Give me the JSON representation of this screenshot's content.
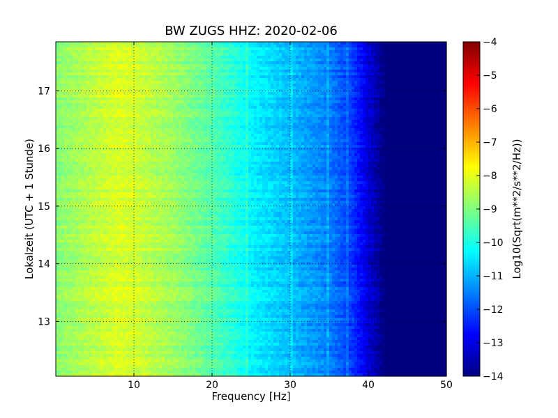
{
  "chart_data": {
    "type": "heatmap",
    "title": "BW ZUGS HHZ: 2020-02-06",
    "xlabel": "Frequency [Hz]",
    "ylabel": "Lokalzeit (UTC + 1 Stunde)",
    "xlim": [
      0,
      50
    ],
    "ylim": [
      17.85,
      12.05
    ],
    "y_inverted": true,
    "xticks": [
      10,
      20,
      30,
      40,
      50
    ],
    "yticks": [
      13,
      14,
      15,
      16,
      17
    ],
    "grid": true,
    "colormap": "jet",
    "colorbar": {
      "label": "Log10(Sqrt(m**2/s**2/Hz))",
      "range": [
        -14,
        -4
      ],
      "ticks": [
        -14,
        -13,
        -12,
        -11,
        -10,
        -9,
        -8,
        -7,
        -6,
        -5,
        -4
      ]
    },
    "spectrum_profile": {
      "frequency_hz": [
        0,
        5,
        8,
        10,
        15,
        20,
        25,
        30,
        35,
        38,
        40,
        42,
        45,
        50
      ],
      "value": [
        -8.9,
        -8.4,
        -8.1,
        -8.2,
        -8.7,
        -9.4,
        -10.3,
        -10.9,
        -11.5,
        -12.2,
        -13.1,
        -14,
        -14,
        -14
      ]
    },
    "horizontal_bands_hours": [
      12.98,
      14.45,
      16.18,
      16.52,
      16.83,
      17.07
    ],
    "vertical_features_hz": [
      24.5,
      30.2,
      34.8,
      37.2
    ]
  }
}
